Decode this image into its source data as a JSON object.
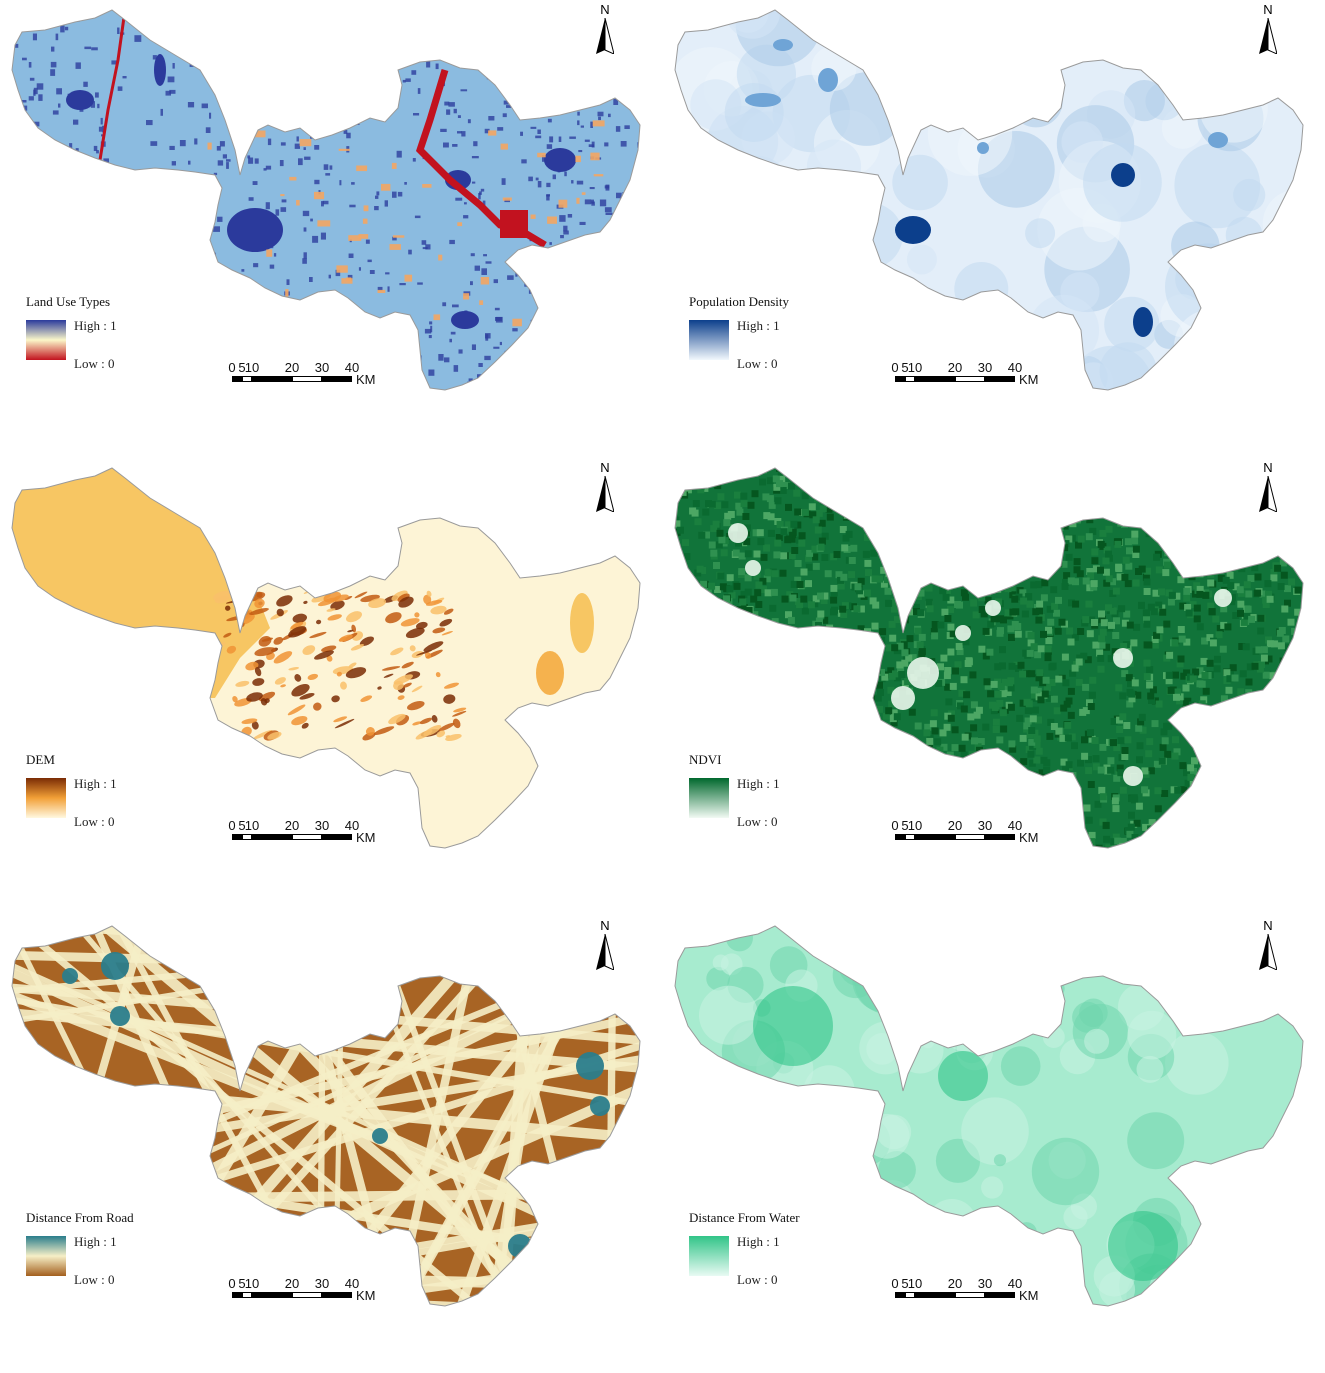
{
  "panels": [
    {
      "id": "landuse",
      "legend_title": "Land Use Types",
      "high": "High : 1",
      "low": "Low : 0",
      "colors": {
        "high": "#2b3a9c",
        "mid": "#fbf7c9",
        "low": "#c2121f",
        "fill": "#8bbbe0"
      }
    },
    {
      "id": "population",
      "legend_title": "Population Density",
      "high": "High : 1",
      "low": "Low : 0",
      "colors": {
        "high": "#0c3f8c",
        "low": "#f2f8fd",
        "fill": "#e3eef9"
      }
    },
    {
      "id": "dem",
      "legend_title": "DEM",
      "high": "High : 1",
      "low": "Low : 0",
      "colors": {
        "high": "#7a2b05",
        "mid": "#f2a037",
        "low": "#fff8e0",
        "fill": "#fdf4d6"
      }
    },
    {
      "id": "ndvi",
      "legend_title": "NDVI",
      "high": "High : 1",
      "low": "Low : 0",
      "colors": {
        "high": "#00682d",
        "low": "#f2faf3",
        "fill": "#11743a"
      }
    },
    {
      "id": "road",
      "legend_title": "Distance From Road",
      "high": "High : 1",
      "low": "Low : 0",
      "colors": {
        "high": "#2a7d8c",
        "mid": "#f6efc7",
        "low": "#a35f1e",
        "fill": "#a86424"
      }
    },
    {
      "id": "water",
      "legend_title": "Distance From Water",
      "high": "High : 1",
      "low": "Low : 0",
      "colors": {
        "high": "#31c488",
        "low": "#e8faf3",
        "fill": "#a7ebcf"
      }
    }
  ],
  "north_label": "N",
  "scale": {
    "ticks": [
      "0",
      "5",
      "10",
      "20",
      "30",
      "40"
    ],
    "unit": "KM"
  }
}
